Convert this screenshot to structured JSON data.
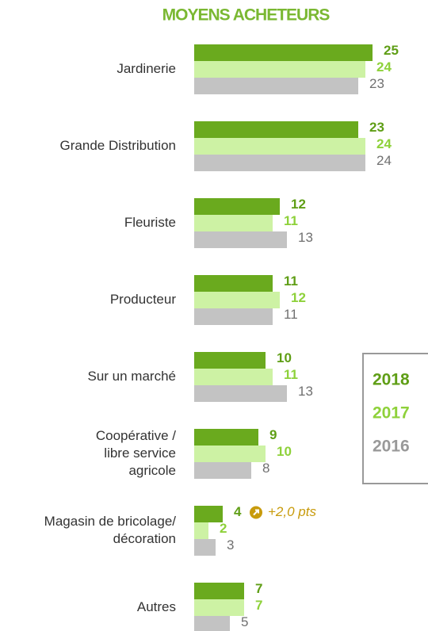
{
  "chart_data": {
    "type": "bar",
    "orientation": "horizontal",
    "title": "MOYENS ACHETEURS",
    "categories": [
      [
        "Jardinerie"
      ],
      [
        "Grande Distribution"
      ],
      [
        "Fleuriste"
      ],
      [
        "Producteur"
      ],
      [
        "Sur un marché"
      ],
      [
        "Coopérative /",
        "libre service",
        "agricole"
      ],
      [
        "Magasin de bricolage/",
        "décoration"
      ],
      [
        "Autres"
      ]
    ],
    "series": [
      {
        "name": "2018",
        "color": "#6aaa1e",
        "label_color": "#5f9e16",
        "values": [
          25,
          23,
          12,
          11,
          10,
          9,
          4,
          7
        ]
      },
      {
        "name": "2017",
        "color": "#cdf2a4",
        "label_color": "#8ed13a",
        "values": [
          24,
          24,
          11,
          12,
          11,
          10,
          2,
          7
        ]
      },
      {
        "name": "2016",
        "color": "#c3c3c3",
        "label_color": "#707070",
        "values": [
          23,
          24,
          13,
          11,
          13,
          8,
          3,
          5
        ]
      }
    ],
    "annotation": "+2,0 pts",
    "annotation_color": "#c89b0c",
    "xlim": [
      0,
      25
    ]
  }
}
